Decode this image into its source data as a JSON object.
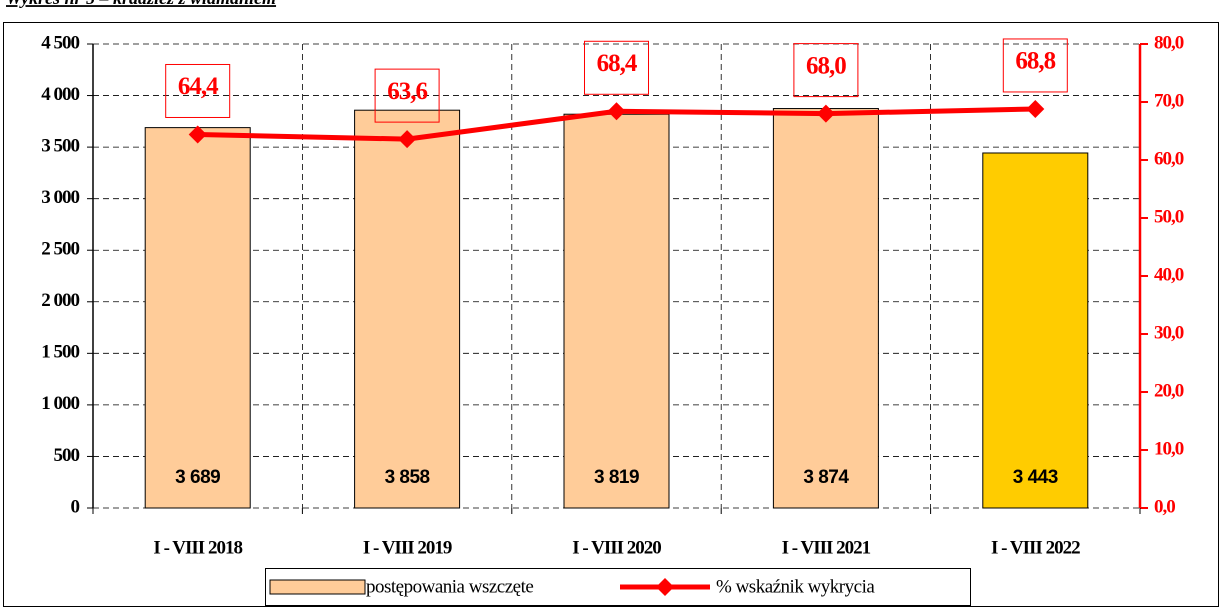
{
  "chart_data": {
    "type": "bar",
    "title": "Wykres nr 5 – kradzież z włamaniem",
    "categories": [
      "I - VIII 2018",
      "I - VIII 2019",
      "I - VIII 2020",
      "I - VIII 2021",
      "I - VIII 2022"
    ],
    "series": [
      {
        "name": "postępowania wszczęte",
        "type": "bar",
        "color": "#ffcc99",
        "colors": [
          "#ffcc99",
          "#ffcc99",
          "#ffcc99",
          "#ffcc99",
          "#ffcc00"
        ],
        "values": [
          3689,
          3858,
          3819,
          3874,
          3443
        ],
        "value_labels": [
          "3 689",
          "3 858",
          "3 819",
          "3 874",
          "3 443"
        ]
      },
      {
        "name": "% wskaźnik wykrycia",
        "type": "line",
        "axis": "y2",
        "color": "#ff0000",
        "values": [
          64.4,
          63.6,
          68.4,
          68.0,
          68.8
        ],
        "value_labels": [
          "64,4",
          "63,6",
          "68,4",
          "68,0",
          "68,8"
        ]
      }
    ],
    "ylim": [
      0,
      4500
    ],
    "yticks": [
      0,
      500,
      {
        "value": 1000,
        "label": "1 000"
      },
      {
        "value": 1500,
        "label": "1 500"
      },
      {
        "value": 2000,
        "label": "2 000"
      },
      {
        "value": 2500,
        "label": "2 500"
      },
      {
        "value": 3000,
        "label": "3 000"
      },
      {
        "value": 3500,
        "label": "3 500"
      },
      {
        "value": 4000,
        "label": "4 000"
      },
      {
        "value": 4500,
        "label": "4 500"
      }
    ],
    "y2lim": [
      0,
      80
    ],
    "y2ticks": [
      {
        "value": 0,
        "label": "0,0"
      },
      {
        "value": 10,
        "label": "10,0"
      },
      {
        "value": 20,
        "label": "20,0"
      },
      {
        "value": 30,
        "label": "30,0"
      },
      {
        "value": 40,
        "label": "40,0"
      },
      {
        "value": 50,
        "label": "50,0"
      },
      {
        "value": 60,
        "label": "60,0"
      },
      {
        "value": 70,
        "label": "70,0"
      },
      {
        "value": 80,
        "label": "80,0"
      }
    ],
    "y2color": "#ff0000",
    "grid": true,
    "legend": "bottom"
  }
}
